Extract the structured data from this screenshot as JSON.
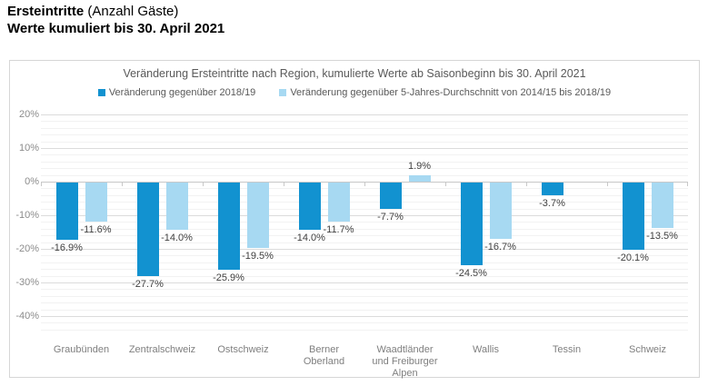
{
  "header": {
    "title_bold": "Ersteintritte",
    "title_regular": " (Anzahl Gäste)",
    "subtitle": "Werte kumuliert bis 30. April 2021"
  },
  "chart_data": {
    "type": "bar",
    "title": "Veränderung Ersteintritte nach Region, kumulierte Werte ab Saisonbeginn bis 30. April 2021",
    "categories": [
      "Graubünden",
      "Zentralschweiz",
      "Ostschweiz",
      "Berner Oberland",
      "Waadtländer und Freiburger Alpen",
      "Wallis",
      "Tessin",
      "Schweiz"
    ],
    "series": [
      {
        "name": "Veränderung gegenüber 2018/19",
        "color": "#1292d0",
        "values": [
          -16.9,
          -27.7,
          -25.9,
          -14.0,
          -7.7,
          -24.5,
          -3.7,
          -20.1
        ],
        "labels": [
          "-16.9%",
          "-27.7%",
          "-25.9%",
          "-14.0%",
          "-7.7%",
          "-24.5%",
          "-3.7%",
          "-20.1%"
        ]
      },
      {
        "name": "Veränderung gegenüber 5-Jahres-Durchschnitt von 2014/15 bis 2018/19",
        "color": "#a7d9f2",
        "values": [
          -11.6,
          -14.0,
          -19.5,
          -11.7,
          1.9,
          -16.7,
          null,
          -13.5
        ],
        "labels": [
          "-11.6%",
          "-14.0%",
          "-19.5%",
          "-11.7%",
          "1.9%",
          "-16.7%",
          null,
          "-13.5%"
        ]
      }
    ],
    "ylabel": "",
    "xlabel": "",
    "ylim": [
      -40,
      20
    ],
    "y_tick_labels": [
      "20%",
      "10%",
      "0%",
      "-10%",
      "-20%",
      "-30%",
      "-40%"
    ],
    "y_major_step": 10,
    "y_minor_step": 2,
    "grid": "on",
    "legend_position": "top",
    "value_label_suffix": "%"
  },
  "colors": {
    "series1": "#1292d0",
    "series2": "#a7d9f2",
    "grid_major": "#dcdcdc",
    "grid_minor": "#f2f2f2",
    "axis_text": "#8c8c8c",
    "category_text": "#7f7f7f",
    "title_text": "#595959",
    "data_label_text": "#404040",
    "box_border": "#d6d6d6"
  }
}
